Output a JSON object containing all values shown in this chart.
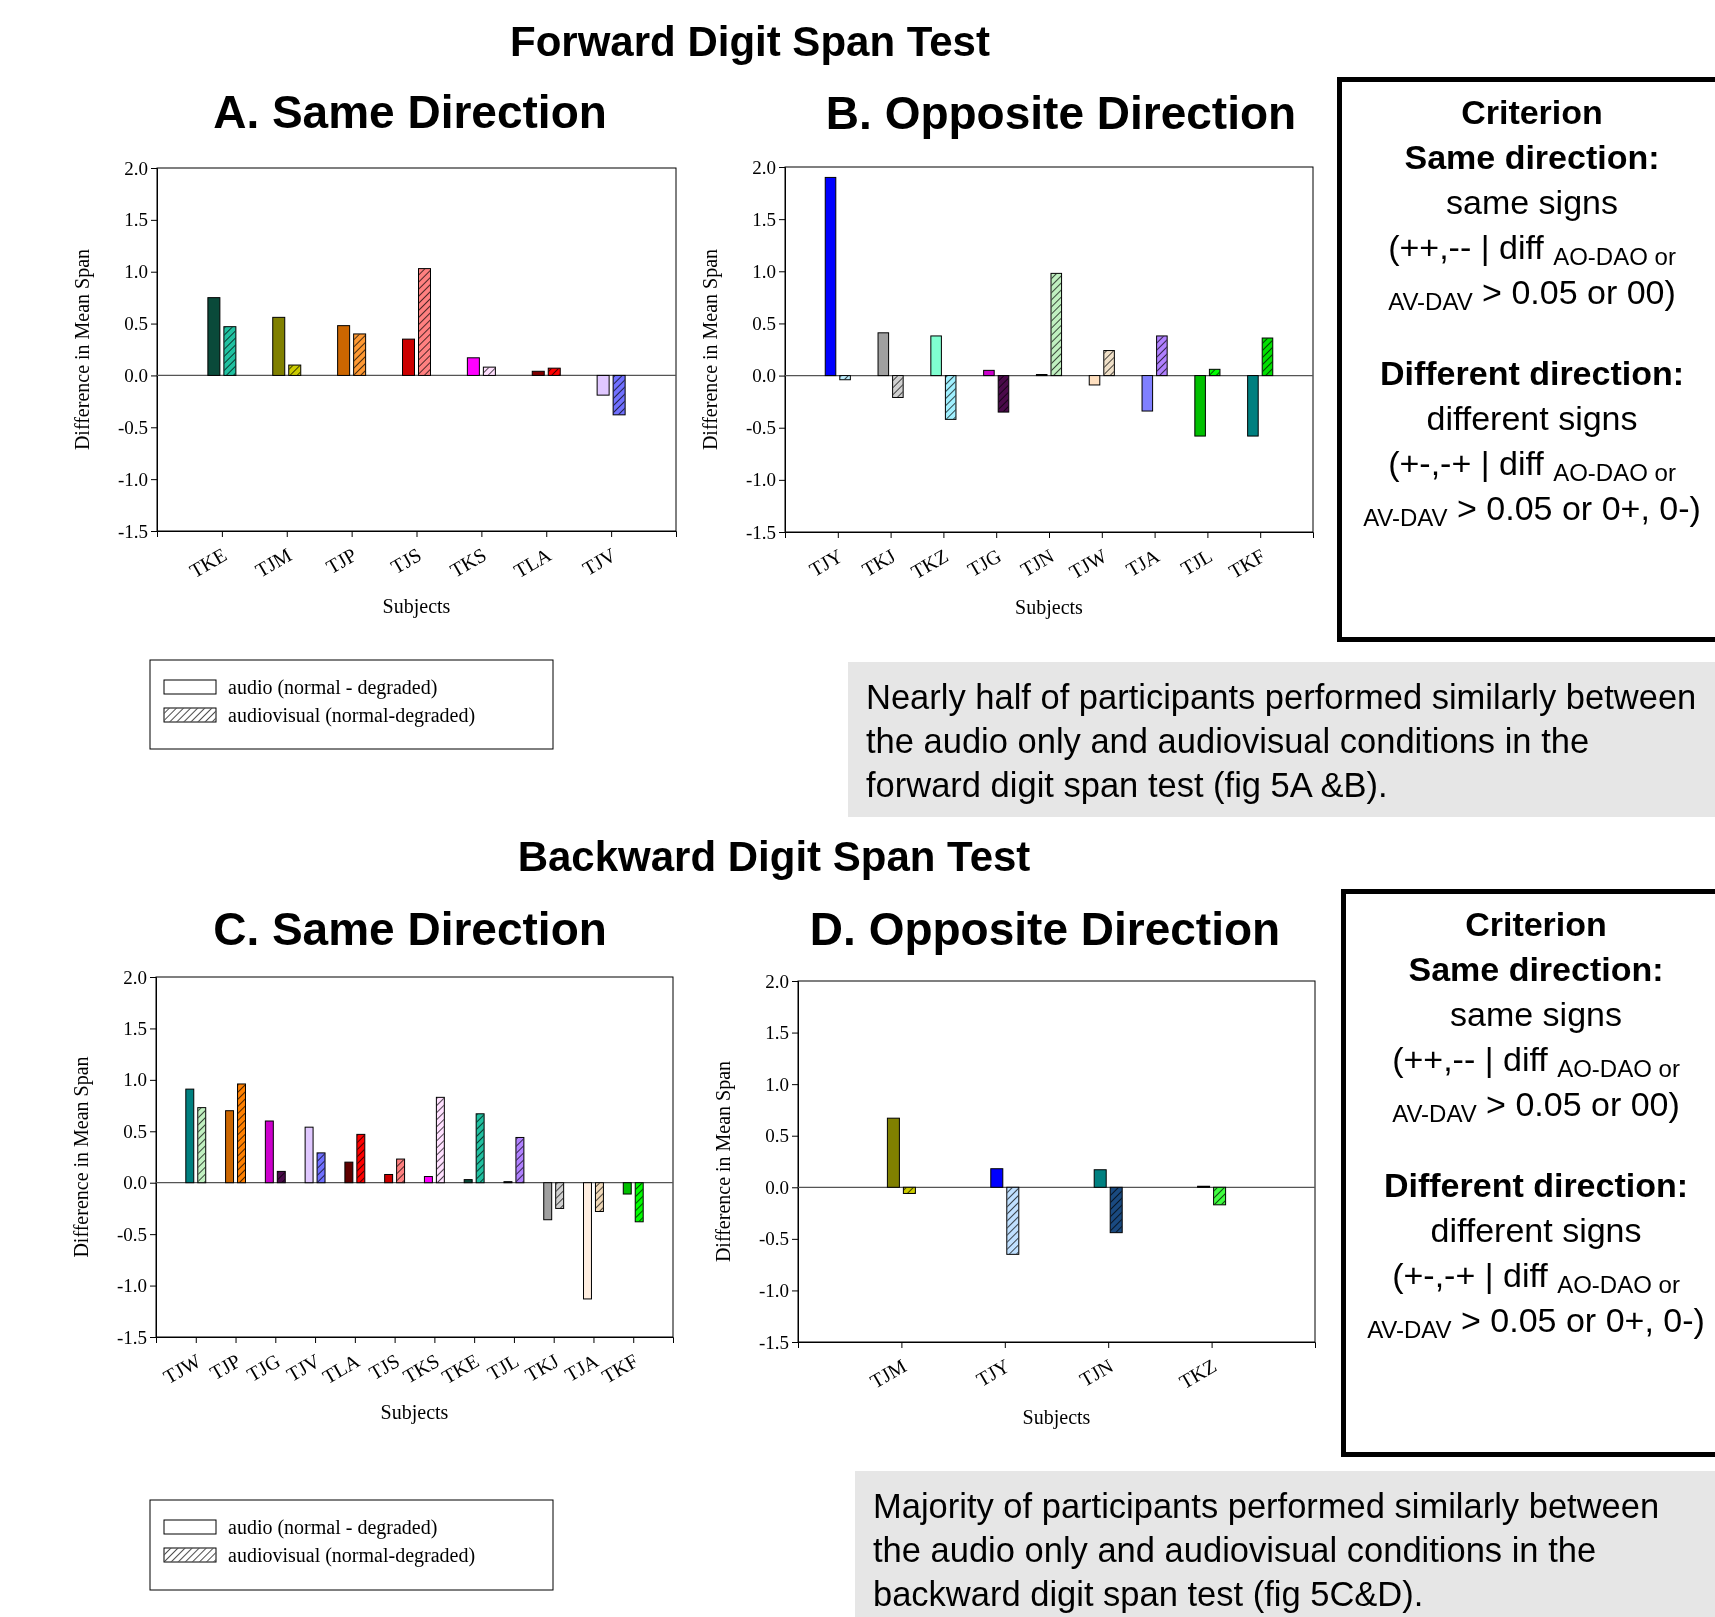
{
  "chart_data": [
    {
      "type": "other",
      "title": "Forward Digit Span Test"
    },
    {
      "type": "bar",
      "title": "A. Same Direction",
      "xlabel": "Subjects",
      "ylabel": "Difference in Mean Span",
      "categories": [
        "TKE",
        "TJM",
        "TJP",
        "TJS",
        "TKS",
        "TLA",
        "TJV"
      ],
      "series": [
        {
          "name": "audio (normal - degraded)",
          "color": "#ffffff",
          "colors": [
            "#0a4a3a",
            "#808000",
            "#cc6600",
            "#cc0000",
            "#ff00ff",
            "#800000",
            "#e0c8ff"
          ],
          "values": [
            0.75,
            0.56,
            0.48,
            0.35,
            0.17,
            0.04,
            -0.19
          ]
        },
        {
          "name": "audiovisual (normal-degraded)",
          "color": "#ffffff",
          "colors": [
            "#20c0a0",
            "#cccc00",
            "#ff9933",
            "#ff8080",
            "#ffe0ff",
            "#ff0000",
            "#7070ff"
          ],
          "values": [
            0.47,
            0.1,
            0.4,
            1.03,
            0.08,
            0.07,
            -0.38
          ]
        }
      ],
      "ylim": [
        -1.5,
        2
      ],
      "yticks": [
        {
          "value": 2,
          "label": "2.0"
        },
        1.5,
        {
          "value": 1,
          "label": "1.0"
        },
        0.5,
        {
          "value": 0,
          "label": "0.0"
        },
        -0.5,
        {
          "value": -1,
          "label": "-1.0"
        },
        -1.5
      ],
      "legend": "bottom"
    },
    {
      "type": "bar",
      "title": "B. Opposite Direction",
      "xlabel": "Subjects",
      "ylabel": "Difference in Mean Span",
      "categories": [
        "TJY",
        "TKJ",
        "TKZ",
        "TJG",
        "TJN",
        "TJW",
        "TJA",
        "TJL",
        "TKF"
      ],
      "series": [
        {
          "colors": [
            "#0000ff",
            "#a0a0a0",
            "#80ffd0",
            "#cc00cc",
            "#1a4a3a",
            "#ffe0c0",
            "#8080ff",
            "#00c000",
            "#008080"
          ],
          "values": [
            1.9,
            0.41,
            0.38,
            0.05,
            0.01,
            -0.09,
            -0.34,
            -0.58,
            -0.58
          ]
        },
        {
          "colors": [
            "#c0f0ff",
            "#d0d0d0",
            "#a0f0ff",
            "#4a0a4a",
            "#c0f0c0",
            "#f0e0c8",
            "#b080ff",
            "#00ff00",
            "#00e000"
          ],
          "values": [
            -0.04,
            -0.21,
            -0.42,
            -0.35,
            0.98,
            0.24,
            0.38,
            0.06,
            0.36
          ]
        }
      ],
      "ylim": [
        -1.5,
        2
      ],
      "yticks": [
        {
          "value": 2,
          "label": "2.0"
        },
        1.5,
        {
          "value": 1,
          "label": "1.0"
        },
        0.5,
        {
          "value": 0,
          "label": "0.0"
        },
        -0.5,
        {
          "value": -1,
          "label": "-1.0"
        },
        -1.5
      ]
    },
    {
      "type": "other",
      "title": "Criterion",
      "annotations": [
        "Same direction:",
        "same signs",
        "(++,-- | diff $_{AO-DAO or AV-DAV}$ > 0.05 or 00)",
        "Different direction:",
        "different signs",
        "(+-,-+ | diff $_{AO-DAO or AV-DAV}$ > 0.05 or 0+, 0-)"
      ]
    },
    {
      "type": "other",
      "annotations": [
        "Nearly half of participants performed similarly between the audio only and audiovisual conditions in the forward digit span test (fig 5A &B)."
      ]
    },
    {
      "type": "other",
      "title": "Backward Digit Span Test"
    },
    {
      "type": "bar",
      "title": "C. Same Direction",
      "xlabel": "Subjects",
      "ylabel": "Difference in Mean Span",
      "categories": [
        "TJW",
        "TJP",
        "TJG",
        "TJV",
        "TLA",
        "TJS",
        "TKS",
        "TKE",
        "TJL",
        "TKJ",
        "TJA",
        "TKF"
      ],
      "series": [
        {
          "name": "audio (normal - degraded)",
          "color": "#ffffff",
          "colors": [
            "#008080",
            "#cc6600",
            "#cc00cc",
            "#e0c8ff",
            "#600000",
            "#cc0000",
            "#ff00ff",
            "#0a4a3a",
            "#1a4a4a",
            "#a0a0a0",
            "#ffeee0",
            "#00c000"
          ],
          "values": [
            0.91,
            0.7,
            0.6,
            0.54,
            0.2,
            0.08,
            0.06,
            0.03,
            0.01,
            -0.36,
            -1.13,
            -0.11
          ]
        },
        {
          "name": "audiovisual (normal-degraded)",
          "color": "#ffffff",
          "colors": [
            "#c0f0c0",
            "#ff8000",
            "#4a0a4a",
            "#7070ff",
            "#ff0000",
            "#ff8080",
            "#ffe0ff",
            "#20c0a0",
            "#b080ff",
            "#d0d0d0",
            "#f0d8b8",
            "#00ff00"
          ],
          "values": [
            0.73,
            0.96,
            0.11,
            0.29,
            0.47,
            0.23,
            0.83,
            0.67,
            0.44,
            -0.25,
            -0.28,
            -0.38
          ]
        }
      ],
      "ylim": [
        -1.5,
        2
      ],
      "yticks": [
        {
          "value": 2,
          "label": "2.0"
        },
        1.5,
        {
          "value": 1,
          "label": "1.0"
        },
        0.5,
        {
          "value": 0,
          "label": "0.0"
        },
        -0.5,
        {
          "value": -1,
          "label": "-1.0"
        },
        -1.5
      ],
      "legend": "bottom"
    },
    {
      "type": "bar",
      "title": "D. Opposite Direction",
      "xlabel": "Subjects",
      "ylabel": "Difference in Mean Span",
      "categories": [
        "TJM",
        "TJY",
        "TJN",
        "TKZ"
      ],
      "series": [
        {
          "colors": [
            "#808000",
            "#0000ff",
            "#008080",
            "#000000"
          ],
          "values": [
            0.67,
            0.18,
            0.17,
            0.01
          ]
        },
        {
          "colors": [
            "#cccc00",
            "#c0e0ff",
            "#1a4a80",
            "#40ff40"
          ],
          "values": [
            -0.06,
            -0.65,
            -0.44,
            -0.17
          ]
        }
      ],
      "ylim": [
        -1.5,
        2
      ],
      "yticks": [
        {
          "value": 2,
          "label": "2.0"
        },
        1.5,
        {
          "value": 1,
          "label": "1.0"
        },
        0.5,
        {
          "value": 0,
          "label": "0.0"
        },
        -0.5,
        {
          "value": -1,
          "label": "-1.0"
        },
        -1.5
      ]
    },
    {
      "type": "other",
      "title": "Criterion",
      "annotations": [
        "Same direction:",
        "same signs",
        "(++,-- | diff $_{AO-DAO or AV-DAV}$ > 0.05 or 00)",
        "Different direction:",
        "different signs",
        "(+-,-+ | diff $_{AO-DAO or AV-DAV}$ > 0.05 or 0+, 0-)"
      ]
    },
    {
      "type": "other",
      "annotations": [
        "Majority of participants performed similarly between the audio only and audiovisual conditions in the backward digit span test (fig 5C&D)."
      ]
    }
  ]
}
